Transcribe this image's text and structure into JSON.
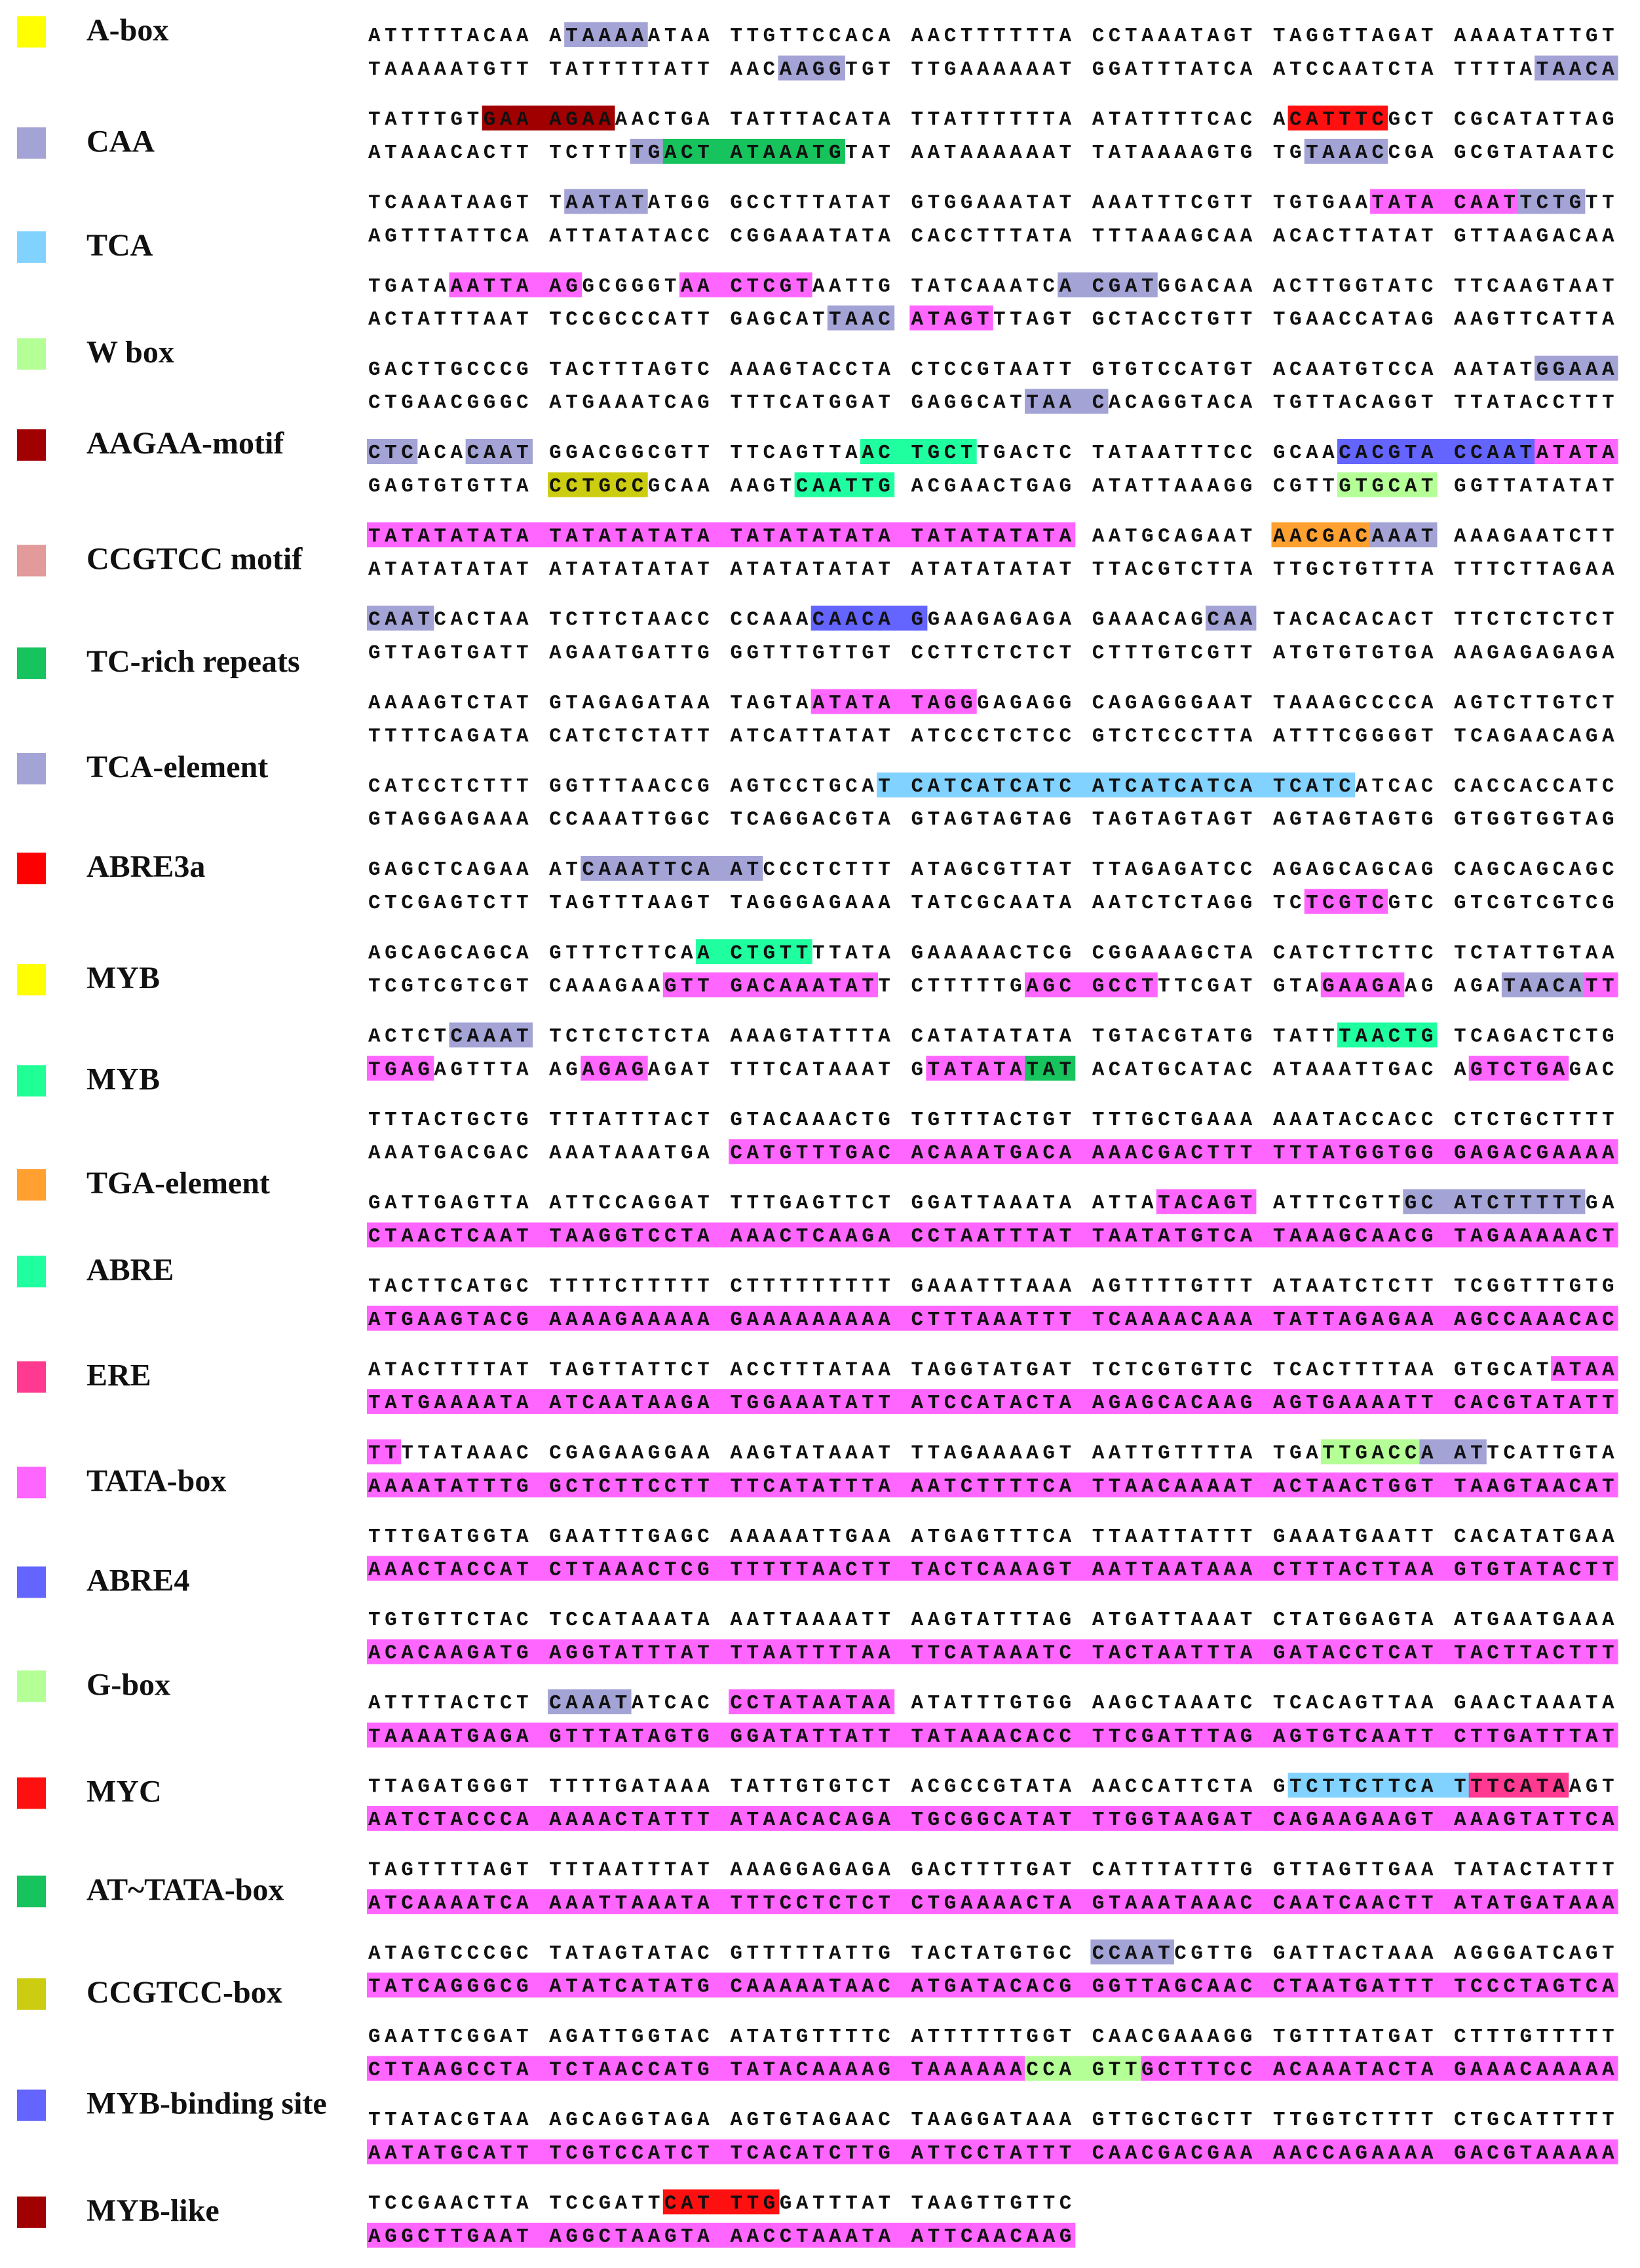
{
  "legend": [
    {
      "label": "A-box",
      "color": "#ffff00"
    },
    {
      "label": "CAA",
      "color": "#a3a3d6"
    },
    {
      "label": "TCA",
      "color": "#82d2ff"
    },
    {
      "label": "W box",
      "color": "#b4ff96"
    },
    {
      "label": "AAGAA-motif",
      "color": "#a00000"
    },
    {
      "label": "CCGTCC motif",
      "color": "#e39a9a"
    },
    {
      "label": "TC-rich repeats",
      "color": "#16c35c"
    },
    {
      "label": "TCA-element",
      "color": "#a3a3d6"
    },
    {
      "label": "ABRE3a",
      "color": "#ff0000"
    },
    {
      "label": "MYB",
      "color": "#ffff00"
    },
    {
      "label": "MYB",
      "color": "#20ff96"
    },
    {
      "label": "TGA-element",
      "color": "#ffa030"
    },
    {
      "label": "ABRE",
      "color": "#20ffa0"
    },
    {
      "label": "ERE",
      "color": "#ff3a90"
    },
    {
      "label": "TATA-box",
      "color": "#ff66ff"
    },
    {
      "label": "ABRE4",
      "color": "#6464ff"
    },
    {
      "label": "G-box",
      "color": "#b4ff96"
    },
    {
      "label": "MYC",
      "color": "#ff1010"
    },
    {
      "label": "AT~TATA-box",
      "color": "#16c35c"
    },
    {
      "label": "CCGTCC-box",
      "color": "#cccc10"
    },
    {
      "label": "MYB-binding site",
      "color": "#6464ff"
    },
    {
      "label": "MYB-like",
      "color": "#a00000"
    }
  ],
  "sequence": {
    "rows": [
      {
        "top": "ATTTTTACAA ATAAAAATAA TTGTTCCACA AACTTTTTTA CCTAAATAGT TAGGTTAGAT AAAATATTGT",
        "bottom": "TAAAAATGTT TATTTTTATT AACAAGGTGT TTGAAAAAAT GGATTTATCA ATCCAATCTA TTTTATAACA"
      },
      {
        "top": "TATTTGTGAA AGAAAACTGA TATTTACATA TTATTTTTTA ATATTTTCAC ACATTTCGCT CGCATATTAG",
        "bottom": "ATAAACACTT TCTTTTGACT ATAAATGTAT AATAAAAAAT TATAAAAGTG TGTAAACCGA GCGTATAATC"
      },
      {
        "top": "TCAAATAAGT TAATATATGG GCCTTTATAT GTGGAAATAT AAATTTCGTT TGTGAATATA CAATTCTGTT",
        "bottom": "AGTTTATTCA ATTATATACC CGGAAATATA CACCTTTATA TTTAAAGCAA ACACTTATAT GTTAAGACAA"
      },
      {
        "top": "TGATAAATTA AGGCGGGTAA CTCGTAATTG TATCAAATCA CGATGGACAA ACTTGGTATC TTCAAGTAAT",
        "bottom": "ACTATTTAAT TCCGCCCATT GAGCATTAAC ATAGTTTAGT GCTACCTGTT TGAACCATAG AAGTTCATTA"
      },
      {
        "top": "GACTTGCCCG TACTTTAGTC AAAGTACCTA CTCCGTAATT GTGTCCATGT ACAATGTCCA AATATGGAAA",
        "bottom": "CTGAACGGGC ATGAAATCAG TTTCATGGAT GAGGCATTAA CACAGGTACA TGTTACAGGT TTATACCTTT"
      },
      {
        "top": "CTCACACAAT GGACGGCGTT TTCAGTTAAC TGCTTGACTC TATAATTTCC GCAACACGTA CCAATATATA",
        "bottom": "GAGTGTGTTA CCTGCCGCAA AAGTCAATTG ACGAACTGAG ATATTAAAGG CGTTGTGCAT GGTTATATAT"
      },
      {
        "top": "TATATATATA TATATATATA TATATATATA TATATATATA AATGCAGAAT AACGACAAAT AAAGAATCTT",
        "bottom": "ATATATATAT ATATATATAT ATATATATAT ATATATATAT TTACGTCTTA TTGCTGTTTA TTTCTTAGAA"
      },
      {
        "top": "CAATCACTAA TCTTCTAACC CCAAACAACA GGAAGAGAGA GAAACAGCAA TACACACACT TTCTCTCTCT",
        "bottom": "GTTAGTGATT AGAATGATTG GGTTTGTTGT CCTTCTCTCT CTTTGTCGTT ATGTGTGTGA AAGAGAGAGA"
      },
      {
        "top": "AAAAGTCTAT GTAGAGATAA TAGTAATATA TAGGGAGAGG CAGAGGGAAT TAAAGCCCCA AGTCTTGTCT",
        "bottom": "TTTTCAGATA CATCTCTATT ATCATTATAT ATCCCTCTCC GTCTCCCTTA ATTTCGGGGT TCAGAACAGA"
      },
      {
        "top": "CATCCTCTTT GGTTTAACCG AGTCCTGCAT CATCATCATC ATCATCATCA TCATCATCAC CACCACCATC",
        "bottom": "GTAGGAGAAA CCAAATTGGC TCAGGACGTA GTAGTAGTAG TAGTAGTAGT AGTAGTAGTG GTGGTGGTAG"
      },
      {
        "top": "GAGCTCAGAA ATCAAATTCA ATCCCTCTTT ATAGCGTTAT TTAGAGATCC AGAGCAGCAG CAGCAGCAGC",
        "bottom": "CTCGAGTCTT TAGTTTAAGT TAGGGAGAAA TATCGCAATA AATCTCTAGG TCTCGTCGTC GTCGTCGTCG"
      },
      {
        "top": "AGCAGCAGCA GTTTCTTCAA CTGTTTTATA GAAAAACTCG CGGAAAGCTA CATCTTCTTC TCTATTGTAA",
        "bottom": "TCGTCGTCGT CAAAGAAGTT GACAAATATT CTTTTTGAGC GCCTTTCGAT GTAGAAGAAG AGATAACATT"
      },
      {
        "top": "ACTCTCAAAT TCTCTCTCTA AAAGTATTTA CATATATATA TGTACGTATG TATTTAACTG TCAGACTCTG",
        "bottom": "TGAGAGTTTA AGAGAGAGAT TTTCATAAAT GTATATATAT ACATGCATAC ATAAATTGAC AGTCTGAGAC"
      },
      {
        "top": "TTTACTGCTG TTTATTTACT GTACAAACTG TGTTTACTGT TTTGCTGAAA AAATACCACC CTCTGCTTTT",
        "bottom": "AAATGACGAC AAATAAATGA CATGTTTGAC ACAAATGACA AAACGACTTT TTTATGGTGG GAGACGAAAA"
      },
      {
        "top": "GATTGAGTTA ATTCCAGGAT TTTGAGTTCT GGATTAAATA ATTATACAGT ATTTCGTTGC ATCTTTTTGA",
        "bottom": "CTAACTCAAT TAAGGTCCTA AAACTCAAGA CCTAATTTAT TAATATGTCA TAAAGCAACG TAGAAAAACT"
      },
      {
        "top": "TACTTCATGC TTTTCTTTTT CTTTTTTTTT GAAATTTAAA AGTTTTGTTT ATAATCTCTT TCGGTTTGTG",
        "bottom": "ATGAAGTACG AAAAGAAAAA GAAAAAAAAA CTTTAAATTT TCAAAACAAA TATTAGAGAA AGCCAAACAC"
      },
      {
        "top": "ATACTTTTAT TAGTTATTCT ACCTTTATAA TAGGTATGAT TCTCGTGTTC TCACTTTTAA GTGCATATAA",
        "bottom": "TATGAAAATA ATCAATAAGA TGGAAATATT ATCCATACTA AGAGCACAAG AGTGAAAATT CACGTATATT"
      },
      {
        "top": "TTTTATAAAC CGAGAAGGAA AAGTATAAAT TTAGAAAAGT AATTGTTTTA TGATTGACCA ATTCATTGTA",
        "bottom": "AAAATATTTG GCTCTTCCTT TTCATATTTA AATCTTTTCA TTAACAAAAT ACTAACTGGT TAAGTAACAT"
      },
      {
        "top": "TTTGATGGTA GAATTTGAGC AAAAATTGAA ATGAGTTTCA TTAATTATTT GAAATGAATT CACATATGAA",
        "bottom": "AAACTACCAT CTTAAACTCG TTTTTAACTT TACTCAAAGT AATTAATAAA CTTTACTTAA GTGTATACTT"
      },
      {
        "top": "TGTGTTCTAC TCCATAAATA AATTAAAATT AAGTATTTAG ATGATTAAAT CTATGGAGTA ATGAATGAAA",
        "bottom": "ACACAAGATG AGGTATTTAT TTAATTTTAA TTCATAAATC TACTAATTTA GATACCTCAT TACTTACTTT"
      },
      {
        "top": "ATTTTACTCT CAAATATCAC CCTATAATAA ATATTTGTGG AAGCTAAATC TCACAGTTAA GAACTAAATA",
        "bottom": "TAAAATGAGA GTTTATAGTG GGATATTATT TATAAACACC TTCGATTTAG AGTGTCAATT CTTGATTTAT"
      },
      {
        "top": "TTAGATGGGT TTTTGATAAA TATTGTGTCT ACGCCGTATA AACCATTCTA GTCTTCTTCA TTTCATAAGT",
        "bottom": "AATCTACCCA AAAACTATTT ATAACACAGA TGCGGCATAT TTGGTAAGAT CAGAAGAAGT AAAGTATTCA"
      },
      {
        "top": "TAGTTTTAGT TTTAATTTAT AAAGGAGAGA GACTTTTGAT CATTTATTTG GTTAGTTGAA TATACTATTT",
        "bottom": "ATCAAAATCA AAATTAAATA TTTCCTCTCT CTGAAAACTA GTAAATAAAC CAATCAACTT ATATGATAAA"
      },
      {
        "top": "ATAGTCCCGC TATAGTATAC GTTTTTATTG TACTATGTGC CCAATCGTTG GATTACTAAA AGGGATCAGT",
        "bottom": "TATCAGGGCG ATATCATATG CAAAAATAAC ATGATACACG GGTTAGCAAC CTAATGATTT TCCCTAGTCA"
      },
      {
        "top": "GAATTCGGAT AGATTGGTAC ATATGTTTTC ATTTTTTGGT CAACGAAAGG TGTTTATGAT CTTTGTTTTT",
        "bottom": "CTTAAGCCTA TCTAACCATG TATACAAAAG TAAAAAACCA GTTGCTTTCC ACAAATACTA GAAACAAAAA"
      },
      {
        "top": "TTATACGTAA AGCAGGTAGA AGTGTAGAAC TAAGGATAAA GTTGCTGCTT TTGGTCTTTT CTGCATTTTT",
        "bottom": "AATATGCATT TCGTCCATCT TCACATCTTG ATTCCTATTT CAACGACGAA AACCAGAAAA GACGTAAAAA"
      },
      {
        "top": "TCCGAACTTA TCCGATTCAT TTGGATTTAT TAAGTTGTTC",
        "bottom": "AGGCTTGAAT AGGCTAAGTA AACCTAAATA ATTCAACAAG"
      }
    ]
  }
}
